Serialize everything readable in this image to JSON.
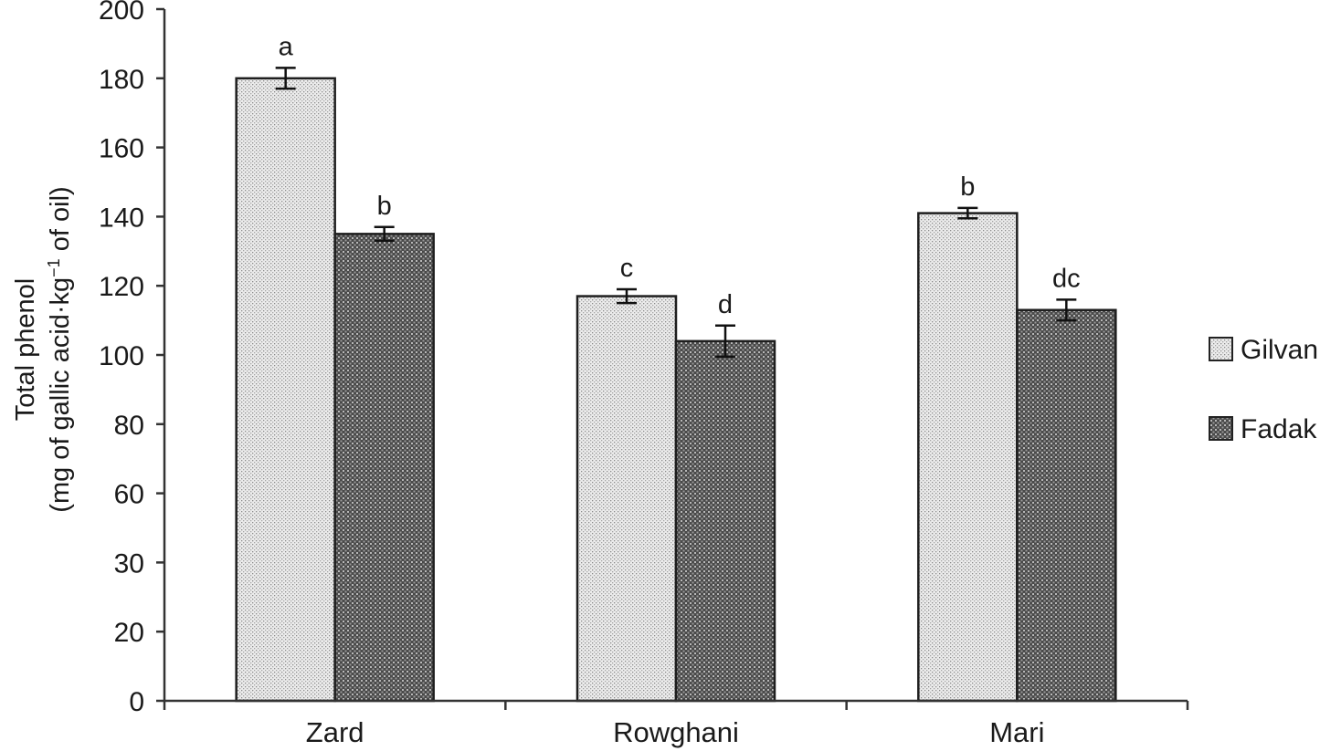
{
  "chart_data": {
    "type": "bar",
    "categories": [
      "Zard",
      "Rowghani",
      "Mari"
    ],
    "y_tick_labels": [
      "0",
      "20",
      "30",
      "60",
      "80",
      "100",
      "120",
      "140",
      "160",
      "180",
      "200"
    ],
    "ylim": [
      0,
      200
    ],
    "ylabel_line1": "Total phenol",
    "ylabel_line2": "(mg of gallic acid·kg",
    "ylabel_sup": "−1",
    "ylabel_line2_end": " of oil)",
    "xlabel": "",
    "grid": false,
    "legend_position": "right",
    "series": [
      {
        "name": "Gilvan",
        "values": [
          180,
          117,
          141
        ],
        "errors": [
          3,
          2,
          1.5
        ],
        "annotations": [
          "a",
          "c",
          "b"
        ],
        "pattern": "fine-dots",
        "fill_color": "#e6e6e6"
      },
      {
        "name": "Fadak",
        "values": [
          135,
          104,
          113
        ],
        "errors": [
          2,
          4.5,
          3
        ],
        "annotations": [
          "b",
          "d",
          "dc"
        ],
        "pattern": "crosshatch",
        "fill_color": "#5a5a5a"
      }
    ]
  }
}
